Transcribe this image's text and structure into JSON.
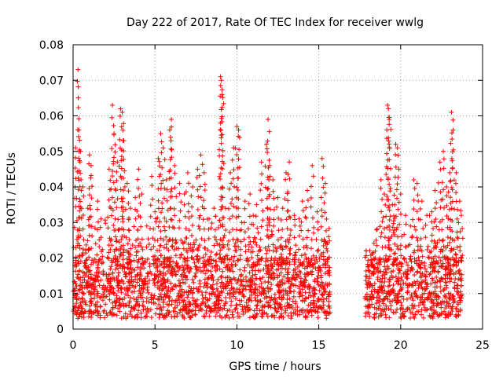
{
  "chart_data": {
    "type": "scatter",
    "title": "Day 222 of 2017, Rate Of TEC Index for receiver wwlg",
    "xlabel": "GPS time / hours",
    "ylabel": "ROTI / TECUs",
    "xlim": [
      0,
      25
    ],
    "ylim": [
      0,
      0.08
    ],
    "grid": true,
    "marker": "+",
    "series_color": "#ff0000",
    "x_ticks": [
      "0",
      "5",
      "10",
      "15",
      "20",
      "25"
    ],
    "x_tick_values": [
      0,
      5,
      10,
      15,
      20,
      25
    ],
    "y_ticks": [
      "0",
      "0.01",
      "0.02",
      "0.03",
      "0.04",
      "0.05",
      "0.06",
      "0.07",
      "0.08"
    ],
    "y_tick_values": [
      0,
      0.01,
      0.02,
      0.03,
      0.04,
      0.05,
      0.06,
      0.07,
      0.08
    ],
    "data_gap_hours": [
      15.7,
      17.8
    ],
    "baseline_range": [
      0.003,
      0.02
    ],
    "series": [
      {
        "name": "ROTI",
        "points": [
          [
            0.15,
            0.051
          ],
          [
            0.3,
            0.073
          ],
          [
            0.35,
            0.056
          ],
          [
            0.45,
            0.05
          ],
          [
            0.6,
            0.04
          ],
          [
            0.9,
            0.034
          ],
          [
            1.0,
            0.049
          ],
          [
            1.1,
            0.046
          ],
          [
            1.5,
            0.036
          ],
          [
            1.7,
            0.031
          ],
          [
            2.2,
            0.045
          ],
          [
            2.4,
            0.063
          ],
          [
            2.5,
            0.055
          ],
          [
            2.7,
            0.047
          ],
          [
            2.9,
            0.062
          ],
          [
            3.0,
            0.061
          ],
          [
            3.1,
            0.053
          ],
          [
            3.3,
            0.041
          ],
          [
            3.5,
            0.034
          ],
          [
            3.8,
            0.037
          ],
          [
            4.0,
            0.045
          ],
          [
            4.2,
            0.038
          ],
          [
            4.5,
            0.029
          ],
          [
            4.8,
            0.043
          ],
          [
            5.0,
            0.033
          ],
          [
            5.2,
            0.048
          ],
          [
            5.35,
            0.055
          ],
          [
            5.5,
            0.051
          ],
          [
            5.7,
            0.042
          ],
          [
            5.9,
            0.056
          ],
          [
            6.0,
            0.059
          ],
          [
            6.2,
            0.046
          ],
          [
            6.5,
            0.041
          ],
          [
            6.8,
            0.038
          ],
          [
            7.0,
            0.044
          ],
          [
            7.3,
            0.04
          ],
          [
            7.6,
            0.045
          ],
          [
            7.8,
            0.049
          ],
          [
            8.0,
            0.044
          ],
          [
            8.3,
            0.031
          ],
          [
            8.6,
            0.034
          ],
          [
            9.0,
            0.071
          ],
          [
            9.05,
            0.07
          ],
          [
            9.1,
            0.066
          ],
          [
            9.3,
            0.034
          ],
          [
            9.6,
            0.044
          ],
          [
            9.8,
            0.051
          ],
          [
            10.0,
            0.057
          ],
          [
            10.1,
            0.056
          ],
          [
            10.3,
            0.03
          ],
          [
            10.5,
            0.036
          ],
          [
            10.8,
            0.038
          ],
          [
            11.0,
            0.032
          ],
          [
            11.2,
            0.035
          ],
          [
            11.5,
            0.047
          ],
          [
            11.8,
            0.052
          ],
          [
            11.9,
            0.059
          ],
          [
            12.0,
            0.046
          ],
          [
            12.2,
            0.042
          ],
          [
            12.5,
            0.037
          ],
          [
            12.8,
            0.034
          ],
          [
            13.0,
            0.044
          ],
          [
            13.2,
            0.047
          ],
          [
            13.5,
            0.032
          ],
          [
            13.8,
            0.031
          ],
          [
            14.0,
            0.036
          ],
          [
            14.3,
            0.039
          ],
          [
            14.6,
            0.046
          ],
          [
            14.9,
            0.033
          ],
          [
            15.2,
            0.048
          ],
          [
            15.4,
            0.041
          ],
          [
            15.6,
            0.026
          ],
          [
            17.9,
            0.022
          ],
          [
            18.2,
            0.018
          ],
          [
            18.5,
            0.025
          ],
          [
            18.8,
            0.042
          ],
          [
            19.0,
            0.038
          ],
          [
            19.2,
            0.063
          ],
          [
            19.25,
            0.062
          ],
          [
            19.3,
            0.059
          ],
          [
            19.5,
            0.035
          ],
          [
            19.7,
            0.052
          ],
          [
            19.8,
            0.051
          ],
          [
            20.0,
            0.038
          ],
          [
            20.3,
            0.032
          ],
          [
            20.6,
            0.029
          ],
          [
            20.8,
            0.042
          ],
          [
            21.0,
            0.041
          ],
          [
            21.3,
            0.036
          ],
          [
            21.6,
            0.032
          ],
          [
            21.9,
            0.033
          ],
          [
            22.1,
            0.039
          ],
          [
            22.4,
            0.047
          ],
          [
            22.6,
            0.05
          ],
          [
            22.8,
            0.04
          ],
          [
            23.0,
            0.044
          ],
          [
            23.1,
            0.061
          ],
          [
            23.2,
            0.056
          ],
          [
            23.4,
            0.044
          ],
          [
            23.6,
            0.036
          ],
          [
            23.7,
            0.032
          ]
        ]
      }
    ]
  }
}
